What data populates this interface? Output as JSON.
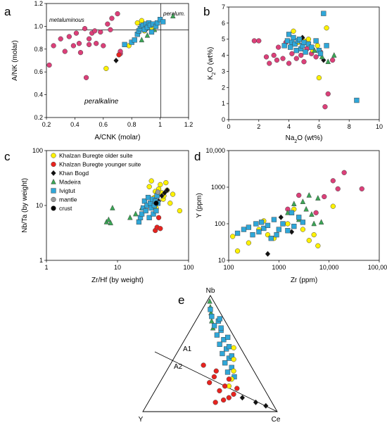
{
  "panel_labels": [
    "a",
    "b",
    "c",
    "d",
    "e"
  ],
  "styles": {
    "Khalzan Buregte older suite": {
      "marker": "circle",
      "color": "#fff200"
    },
    "Khalzan Buregte younger suite": {
      "marker": "circle",
      "color": "#e8231f"
    },
    "Khan Bogd": {
      "marker": "diamond",
      "color": "#111111"
    },
    "Madeira": {
      "marker": "triangle",
      "color": "#3aa655"
    },
    "Ivigtut": {
      "marker": "square",
      "color": "#2fa7d9"
    },
    "mantle": {
      "marker": "circle",
      "color": "#9a9a9a"
    },
    "crust": {
      "marker": "circle",
      "color": "#000000"
    },
    "a_b_circles": {
      "marker": "circle",
      "color": "#dc3f79"
    }
  },
  "legend": {
    "items": [
      "Khalzan Buregte older suite",
      "Khalzan Buregte younger suite",
      "Khan Bogd",
      "Madeira",
      "Ivigtut",
      "mantle",
      "crust"
    ]
  },
  "chart_data": [
    {
      "id": "a",
      "type": "scatter",
      "xlabel": "A/CNK (molar)",
      "ylabel": "A/NK (molar)",
      "xlim": [
        0.2,
        1.2
      ],
      "ylim": [
        0.2,
        1.2
      ],
      "xticks": [
        "0.2",
        "0.4",
        "0.6",
        "0.8",
        "1",
        "1.2"
      ],
      "yticks": [
        "0.2",
        "0.4",
        "0.6",
        "0.8",
        "1.0",
        "1.2"
      ],
      "annotations": [
        "metaluminous",
        "peralum.",
        "peralkaline"
      ],
      "reference_lines": {
        "x": 1.0,
        "y": 1.0
      },
      "series": [
        {
          "name": "a_b_circles",
          "x": [
            0.22,
            0.25,
            0.3,
            0.33,
            0.36,
            0.39,
            0.41,
            0.43,
            0.44,
            0.47,
            0.48,
            0.5,
            0.5,
            0.52,
            0.54,
            0.55,
            0.58,
            0.6,
            0.63,
            0.65,
            0.66,
            0.7,
            0.72,
            0.72
          ],
          "y": [
            0.66,
            0.83,
            0.89,
            0.78,
            0.91,
            0.83,
            0.94,
            0.85,
            0.77,
            0.98,
            0.55,
            0.89,
            0.84,
            0.94,
            0.96,
            0.85,
            0.95,
            0.83,
            1.02,
            0.97,
            1.07,
            1.11,
            0.76,
            0.78
          ]
        },
        {
          "name": "Khalzan Buregte older suite",
          "x": [
            0.62,
            0.78,
            0.84,
            0.85,
            0.87,
            0.89,
            0.91,
            0.93,
            0.94
          ],
          "y": [
            0.63,
            0.83,
            1.03,
            0.95,
            1.05,
            0.96,
            1.0,
            1.01,
            0.99
          ]
        },
        {
          "name": "Khalzan Buregte younger suite",
          "x": [
            0.71,
            0.9
          ],
          "y": [
            0.75,
            0.98
          ]
        },
        {
          "name": "Khan Bogd",
          "x": [
            0.69,
            0.9,
            0.92
          ],
          "y": [
            0.7,
            0.97,
            1.0
          ]
        },
        {
          "name": "Madeira",
          "x": [
            0.87,
            0.91,
            0.96,
            1.09
          ],
          "y": [
            0.88,
            0.92,
            0.97,
            1.09
          ]
        },
        {
          "name": "Ivigtut",
          "x": [
            0.75,
            0.8,
            0.82,
            0.84,
            0.85,
            0.86,
            0.87,
            0.88,
            0.89,
            0.9,
            0.91,
            0.92,
            0.93,
            0.94,
            0.95,
            0.97,
            0.98,
            1.0,
            1.02
          ],
          "y": [
            0.84,
            0.86,
            0.88,
            0.93,
            0.96,
            0.98,
            1.0,
            1.01,
            0.97,
            1.02,
            0.99,
            1.03,
            1.01,
            0.95,
            1.02,
            1.0,
            1.03,
            1.06,
            1.04
          ]
        }
      ]
    },
    {
      "id": "b",
      "type": "scatter",
      "xlabel": "Na2O (wt%)",
      "ylabel": "K2O (wt%)",
      "xlim": [
        0,
        10
      ],
      "ylim": [
        0,
        7
      ],
      "xticks": [
        "0",
        "2",
        "4",
        "6",
        "8",
        "10"
      ],
      "yticks": [
        "0",
        "1",
        "2",
        "3",
        "4",
        "5",
        "6",
        "7"
      ],
      "series": [
        {
          "name": "a_b_circles",
          "x": [
            1.7,
            2.0,
            2.5,
            2.7,
            3.0,
            3.2,
            3.3,
            3.6,
            3.8,
            4.0,
            4.2,
            4.5,
            4.8,
            5.0,
            5.2,
            5.5,
            5.8,
            6.1,
            6.4,
            6.6,
            6.9
          ],
          "y": [
            4.9,
            4.9,
            3.9,
            3.5,
            4.0,
            3.7,
            4.5,
            3.8,
            4.8,
            3.5,
            4.1,
            3.8,
            4.0,
            3.6,
            4.4,
            4.1,
            3.9,
            4.2,
            0.8,
            1.6,
            3.7
          ]
        },
        {
          "name": "Khalzan Buregte older suite",
          "x": [
            4.3,
            4.6,
            5.0,
            5.3,
            5.6,
            5.9,
            6.0,
            6.5
          ],
          "y": [
            5.5,
            4.8,
            4.9,
            5.0,
            4.3,
            4.6,
            2.6,
            5.7
          ]
        },
        {
          "name": "Khalzan Buregte younger suite",
          "x": [],
          "y": []
        },
        {
          "name": "Khan Bogd",
          "x": [
            4.9,
            6.3
          ],
          "y": [
            5.1,
            3.7
          ]
        },
        {
          "name": "Madeira",
          "x": [
            5.7,
            6.2,
            6.6,
            7.0
          ],
          "y": [
            4.3,
            3.9,
            3.6,
            4.0
          ]
        },
        {
          "name": "Ivigtut",
          "x": [
            3.7,
            3.9,
            4.0,
            4.1,
            4.2,
            4.3,
            4.4,
            4.5,
            4.6,
            4.7,
            4.8,
            4.9,
            5.0,
            5.1,
            5.3,
            5.5,
            5.8,
            6.0,
            6.1,
            6.3,
            6.5,
            8.5
          ],
          "y": [
            4.6,
            4.9,
            5.3,
            4.5,
            4.8,
            5.1,
            4.7,
            4.3,
            4.9,
            5.0,
            4.4,
            4.6,
            4.8,
            4.2,
            4.7,
            4.5,
            4.9,
            4.3,
            4.1,
            6.6,
            4.6,
            1.2
          ]
        }
      ]
    },
    {
      "id": "c",
      "type": "scatter",
      "xlabel": "Zr/Hf (by weight)",
      "ylabel": "Nb/Ta (by weight)",
      "xscale": "log",
      "yscale": "log",
      "xlim": [
        1,
        100
      ],
      "ylim": [
        1,
        100
      ],
      "xticks": [
        "1",
        "10",
        "100"
      ],
      "yticks": [
        "1",
        "10",
        "100"
      ],
      "series": [
        {
          "name": "Khalzan Buregte older suite",
          "x": [
            28,
            30,
            32,
            33,
            34,
            35,
            36,
            38,
            40,
            42,
            44,
            45,
            48,
            50,
            55,
            60,
            75
          ],
          "y": [
            22,
            28,
            10,
            14,
            18,
            9,
            16,
            20,
            24,
            17,
            13,
            15,
            26,
            19,
            11,
            16,
            8
          ]
        },
        {
          "name": "Khalzan Buregte younger suite",
          "x": [
            34,
            36,
            38,
            40
          ],
          "y": [
            3.5,
            4.0,
            6.0,
            3.8
          ]
        },
        {
          "name": "Khan Bogd",
          "x": [
            38,
            42,
            46,
            50
          ],
          "y": [
            12,
            15,
            17,
            19
          ]
        },
        {
          "name": "Madeira",
          "x": [
            7,
            7.5,
            8,
            8.5,
            15,
            18,
            22,
            25,
            30,
            35
          ],
          "y": [
            5,
            5.5,
            4.8,
            9,
            6,
            7,
            9,
            8,
            11,
            12
          ]
        },
        {
          "name": "Ivigtut",
          "x": [
            20,
            21,
            22,
            23,
            24,
            25,
            26,
            27,
            28,
            29,
            30,
            31,
            32,
            33,
            34,
            35,
            36,
            37
          ],
          "y": [
            5,
            6,
            7,
            9,
            12,
            8,
            10,
            14,
            6,
            11,
            9,
            13,
            7,
            10,
            12,
            8,
            15,
            11
          ]
        },
        {
          "name": "mantle",
          "x": [
            37
          ],
          "y": [
            17.5
          ]
        },
        {
          "name": "crust",
          "x": [
            35
          ],
          "y": [
            11
          ]
        }
      ]
    },
    {
      "id": "d",
      "type": "scatter",
      "xlabel": "Zr (ppm)",
      "ylabel": "Y (ppm)",
      "xscale": "log",
      "yscale": "log",
      "xlim": [
        100,
        100000
      ],
      "ylim": [
        10,
        10000
      ],
      "xticks": [
        "100",
        "1000",
        "10,000",
        "100,000"
      ],
      "yticks": [
        "10",
        "100",
        "1000",
        "10,000"
      ],
      "series": [
        {
          "name": "Khalzan Buregte older suite",
          "x": [
            120,
            150,
            250,
            400,
            500,
            600,
            800,
            1500,
            2000,
            3000,
            4000,
            5000,
            6000,
            12000
          ],
          "y": [
            45,
            18,
            30,
            70,
            120,
            50,
            40,
            100,
            250,
            70,
            35,
            50,
            25,
            300
          ]
        },
        {
          "name": "Khalzan Buregte younger suite",
          "x": [],
          "y": []
        },
        {
          "name": "a_b_circles",
          "x": [
            1500,
            2500,
            5500,
            8000,
            12000,
            15000,
            20000,
            45000
          ],
          "y": [
            250,
            600,
            200,
            550,
            1500,
            900,
            2500,
            900
          ]
        },
        {
          "name": "Khan Bogd",
          "x": [
            600,
            1100,
            1800
          ],
          "y": [
            15,
            150,
            60
          ]
        },
        {
          "name": "Madeira",
          "x": [
            1500,
            2000,
            2500,
            3000,
            3500,
            4000,
            4500,
            5000,
            6000,
            7000
          ],
          "y": [
            200,
            350,
            130,
            400,
            250,
            600,
            180,
            100,
            500,
            110
          ]
        },
        {
          "name": "Ivigtut",
          "x": [
            150,
            200,
            250,
            300,
            350,
            400,
            450,
            500,
            600,
            700,
            800,
            900,
            1000,
            1200,
            1500,
            1800,
            2000,
            2500,
            3000
          ],
          "y": [
            55,
            70,
            80,
            50,
            100,
            60,
            110,
            75,
            90,
            40,
            130,
            50,
            70,
            100,
            65,
            200,
            85,
            150,
            110
          ]
        }
      ]
    },
    {
      "id": "e",
      "type": "ternary",
      "apices": [
        "Nb",
        "Y",
        "Ce"
      ],
      "field_labels": [
        "A1",
        "A2"
      ],
      "series": [
        {
          "name": "Madeira",
          "nb": [
            0.95,
            0.9,
            0.85,
            0.78,
            0.72
          ],
          "y": [
            0.03,
            0.05,
            0.07,
            0.1,
            0.12
          ]
        },
        {
          "name": "Ivigtut",
          "nb": [
            0.88,
            0.82,
            0.78,
            0.74,
            0.7,
            0.66,
            0.62,
            0.58,
            0.54,
            0.5,
            0.46,
            0.42,
            0.38,
            0.34,
            0.3,
            0.8,
            0.72,
            0.64,
            0.56,
            0.48
          ],
          "y": [
            0.06,
            0.08,
            0.05,
            0.1,
            0.07,
            0.12,
            0.09,
            0.14,
            0.11,
            0.16,
            0.13,
            0.18,
            0.15,
            0.2,
            0.17,
            0.03,
            0.06,
            0.05,
            0.08,
            0.1
          ]
        },
        {
          "name": "Khalzan Buregte older suite",
          "nb": [
            0.55,
            0.45,
            0.35,
            0.28,
            0.22
          ],
          "y": [
            0.05,
            0.1,
            0.15,
            0.2,
            0.25
          ]
        },
        {
          "name": "Khalzan Buregte younger suite",
          "nb": [
            0.4,
            0.35,
            0.3,
            0.28,
            0.25,
            0.22,
            0.2,
            0.18,
            0.15,
            0.12,
            0.1,
            0.08
          ],
          "y": [
            0.35,
            0.28,
            0.32,
            0.22,
            0.38,
            0.28,
            0.2,
            0.34,
            0.25,
            0.3,
            0.35,
            0.42
          ]
        },
        {
          "name": "Khan Bogd",
          "nb": [
            0.12,
            0.08,
            0.05
          ],
          "y": [
            0.2,
            0.12,
            0.06
          ]
        }
      ]
    }
  ]
}
